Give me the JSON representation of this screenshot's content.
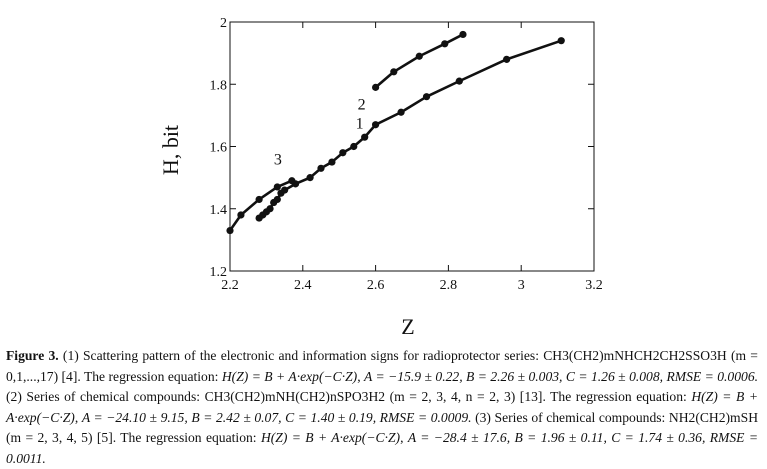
{
  "chart_data": {
    "type": "line",
    "xlabel": "Z",
    "ylabel": "H, bit",
    "xlim": [
      2.2,
      3.2
    ],
    "ylim": [
      1.2,
      2.0
    ],
    "x_ticks": [
      "2.2",
      "2.4",
      "2.6",
      "2.8",
      "3",
      "3.2"
    ],
    "y_ticks": [
      "1.2",
      "1.4",
      "1.6",
      "1.8",
      "2"
    ],
    "grid": false,
    "series": [
      {
        "name": "1",
        "x": [
          2.28,
          2.29,
          2.3,
          2.31,
          2.32,
          2.33,
          2.34,
          2.35,
          2.38,
          2.42,
          2.45,
          2.48,
          2.51,
          2.54,
          2.57,
          2.6,
          2.67,
          2.74,
          2.83,
          2.96,
          3.11
        ],
        "y": [
          1.37,
          1.38,
          1.39,
          1.4,
          1.42,
          1.43,
          1.45,
          1.46,
          1.48,
          1.5,
          1.53,
          1.55,
          1.58,
          1.6,
          1.63,
          1.67,
          1.71,
          1.76,
          1.81,
          1.88,
          1.94
        ]
      },
      {
        "name": "2",
        "x": [
          2.6,
          2.65,
          2.72,
          2.79,
          2.84
        ],
        "y": [
          1.79,
          1.84,
          1.89,
          1.93,
          1.96
        ]
      },
      {
        "name": "3",
        "x": [
          2.2,
          2.23,
          2.28,
          2.33,
          2.37
        ],
        "y": [
          1.33,
          1.38,
          1.43,
          1.47,
          1.49
        ]
      }
    ]
  },
  "caption": {
    "figure_label": "Figure 3.",
    "p1": "(1) Scattering pattern of the electronic and information signs for radioprotector series: ",
    "compound1": "CH3(CH2)mNHCH2CH2SSO3H",
    "p2": " (m = 0,1,...,17) [4]. The regression equation: ",
    "equation": "H(Z) = B + A·exp(−C·Z)",
    "params1": "A = −15.9 ± 0.22, B = 2.26 ± 0.003, C = 1.26 ± 0.008, RMSE = 0.0006.",
    "p3": " (2) Series of chemical compounds: ",
    "compound2": "CH3(CH2)mNH(CH2)nSPO3H2",
    "p4": " (m = 2, 3, 4, n = 2, 3) [13]. The regression equation: ",
    "params2": "A = −24.10 ± 9.15, B = 2.42 ± 0.07, C = 1.40 ± 0.19, RMSE = 0.0009.",
    "p5": " (3) Series of chemical compounds: ",
    "compound3": "NH2(CH2)mSH",
    "p6": " (m = 2, 3, 4, 5) [5]. The regression equation: ",
    "params3": "A = −28.4 ± 17.6, B = 1.96 ± 0.11, C = 1.74 ± 0.36, RMSE = 0.0011."
  }
}
